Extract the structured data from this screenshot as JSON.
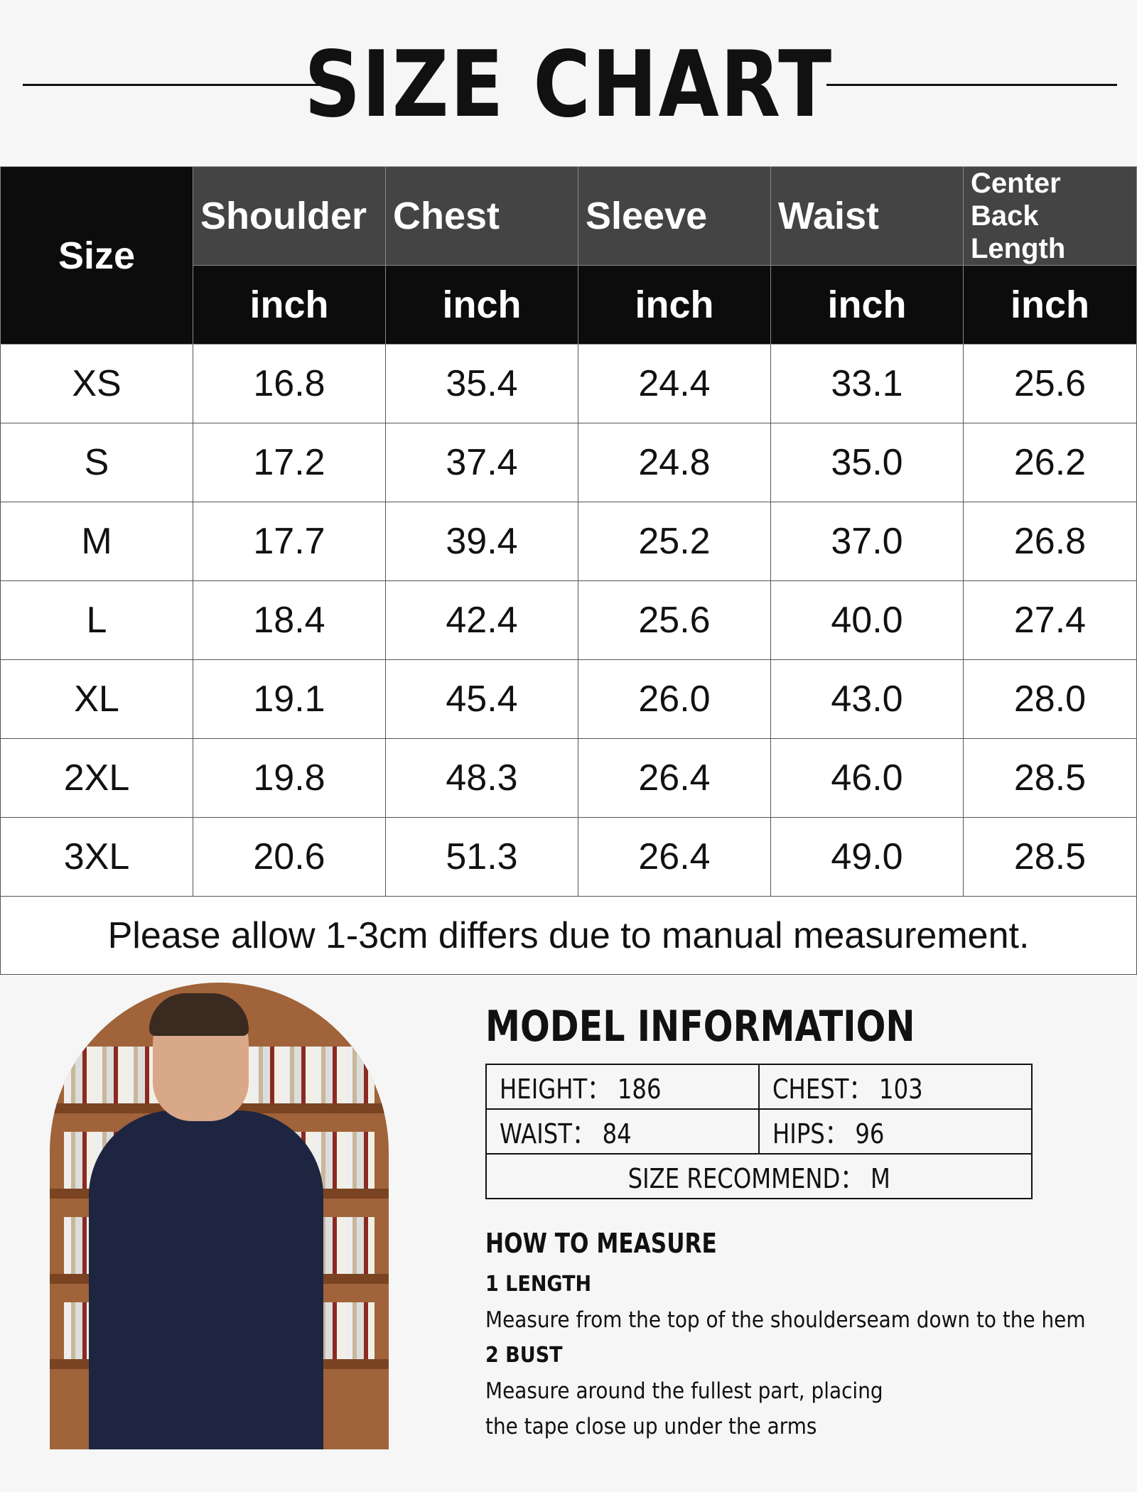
{
  "title": "SIZE CHART",
  "table": {
    "size_header": "Size",
    "columns": [
      "Shoulder",
      "Chest",
      "Sleeve",
      "Waist",
      "Center Back Length"
    ],
    "unit": "inch",
    "rows": [
      [
        "XS",
        "16.8",
        "35.4",
        "24.4",
        "33.1",
        "25.6"
      ],
      [
        "S",
        "17.2",
        "37.4",
        "24.8",
        "35.0",
        "26.2"
      ],
      [
        "M",
        "17.7",
        "39.4",
        "25.2",
        "37.0",
        "26.8"
      ],
      [
        "L",
        "18.4",
        "42.4",
        "25.6",
        "40.0",
        "27.4"
      ],
      [
        "XL",
        "19.1",
        "45.4",
        "26.0",
        "43.0",
        "28.0"
      ],
      [
        "2XL",
        "19.8",
        "48.3",
        "26.4",
        "46.0",
        "28.5"
      ],
      [
        "3XL",
        "20.6",
        "51.3",
        "26.4",
        "49.0",
        "28.5"
      ]
    ],
    "note": "Please allow 1-3cm differs due to manual measurement."
  },
  "model": {
    "title": "MODEL INFORMATION",
    "height": "HEIGHT：  186",
    "chest": "CHEST：  103",
    "waist": "WAIST：  84",
    "hips": "HIPS：  96",
    "recommend": "SIZE RECOMMEND：  M"
  },
  "measure": {
    "title": "HOW TO MEASURE",
    "items": [
      {
        "label": "1 LENGTH",
        "text": [
          "Measure from the top of the shoulderseam down to the hem"
        ]
      },
      {
        "label": "2 BUST",
        "text": [
          "Measure around the fullest part, placing",
          "the tape close up under the arms"
        ]
      }
    ]
  },
  "colors": {
    "header_dark": "#0c0c0c",
    "header_grey": "#444444",
    "background": "#f6f6f6"
  }
}
